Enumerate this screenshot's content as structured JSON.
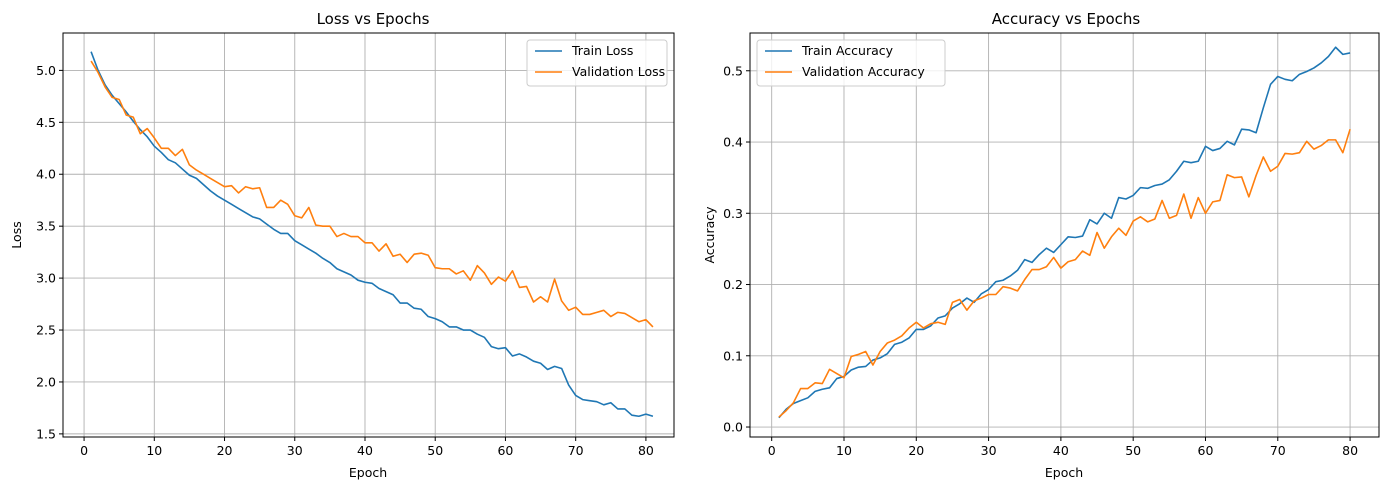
{
  "colors": {
    "train": "#1f77b4",
    "validation": "#ff7f0e"
  },
  "chart_data": [
    {
      "type": "line",
      "title": "Loss vs Epochs",
      "xlabel": "Epoch",
      "ylabel": "Loss",
      "xlim": [
        -3,
        84
      ],
      "ylim": [
        1.47,
        5.36
      ],
      "xticks": [
        0,
        10,
        20,
        30,
        40,
        50,
        60,
        70,
        80
      ],
      "yticks": [
        1.5,
        2.0,
        2.5,
        3.0,
        3.5,
        4.0,
        4.5,
        5.0
      ],
      "ytick_labels": [
        "1.5",
        "2.0",
        "2.5",
        "3.0",
        "3.5",
        "4.0",
        "4.5",
        "5.0"
      ],
      "grid": true,
      "legend": "top-right",
      "x_start": 1,
      "series": [
        {
          "name": "Train Loss",
          "color_key": "train",
          "values": [
            5.18,
            5.0,
            4.86,
            4.76,
            4.68,
            4.6,
            4.51,
            4.43,
            4.36,
            4.27,
            4.21,
            4.14,
            4.11,
            4.05,
            3.99,
            3.96,
            3.9,
            3.84,
            3.79,
            3.75,
            3.71,
            3.67,
            3.63,
            3.59,
            3.57,
            3.52,
            3.47,
            3.43,
            3.43,
            3.36,
            3.32,
            3.28,
            3.24,
            3.19,
            3.15,
            3.09,
            3.06,
            3.03,
            2.98,
            2.96,
            2.95,
            2.9,
            2.87,
            2.84,
            2.76,
            2.76,
            2.71,
            2.7,
            2.63,
            2.61,
            2.58,
            2.53,
            2.53,
            2.5,
            2.5,
            2.46,
            2.43,
            2.34,
            2.32,
            2.33,
            2.25,
            2.27,
            2.24,
            2.2,
            2.18,
            2.12,
            2.15,
            2.13,
            1.97,
            1.87,
            1.83,
            1.82,
            1.81,
            1.78,
            1.8,
            1.74,
            1.74,
            1.68,
            1.67,
            1.69,
            1.67
          ]
        },
        {
          "name": "Validation Loss",
          "color_key": "validation",
          "values": [
            5.09,
            4.98,
            4.84,
            4.74,
            4.72,
            4.57,
            4.55,
            4.39,
            4.44,
            4.35,
            4.25,
            4.25,
            4.18,
            4.24,
            4.09,
            4.04,
            4.0,
            3.96,
            3.92,
            3.88,
            3.89,
            3.82,
            3.88,
            3.86,
            3.87,
            3.68,
            3.68,
            3.75,
            3.71,
            3.6,
            3.58,
            3.68,
            3.51,
            3.5,
            3.5,
            3.4,
            3.43,
            3.4,
            3.4,
            3.34,
            3.34,
            3.26,
            3.33,
            3.21,
            3.23,
            3.15,
            3.23,
            3.24,
            3.22,
            3.1,
            3.09,
            3.09,
            3.04,
            3.07,
            2.98,
            3.12,
            3.05,
            2.94,
            3.01,
            2.97,
            3.07,
            2.91,
            2.92,
            2.77,
            2.82,
            2.77,
            2.99,
            2.78,
            2.69,
            2.72,
            2.65,
            2.65,
            2.67,
            2.69,
            2.63,
            2.67,
            2.66,
            2.62,
            2.58,
            2.6,
            2.53
          ]
        }
      ]
    },
    {
      "type": "line",
      "title": "Accuracy vs Epochs",
      "xlabel": "Epoch",
      "ylabel": "Accuracy",
      "xlim": [
        -3,
        84
      ],
      "ylim": [
        -0.014,
        0.553
      ],
      "xticks": [
        0,
        10,
        20,
        30,
        40,
        50,
        60,
        70,
        80
      ],
      "yticks": [
        0.0,
        0.1,
        0.2,
        0.3,
        0.4,
        0.5
      ],
      "ytick_labels": [
        "0.0",
        "0.1",
        "0.2",
        "0.3",
        "0.4",
        "0.5"
      ],
      "grid": true,
      "legend": "top-left",
      "x_start": 1,
      "series": [
        {
          "name": "Train Accuracy",
          "color_key": "train",
          "values": [
            0.013,
            0.025,
            0.033,
            0.037,
            0.041,
            0.05,
            0.053,
            0.055,
            0.068,
            0.071,
            0.08,
            0.084,
            0.085,
            0.094,
            0.097,
            0.103,
            0.116,
            0.119,
            0.125,
            0.137,
            0.137,
            0.142,
            0.153,
            0.156,
            0.167,
            0.173,
            0.181,
            0.175,
            0.187,
            0.193,
            0.204,
            0.206,
            0.212,
            0.22,
            0.235,
            0.231,
            0.242,
            0.251,
            0.245,
            0.256,
            0.267,
            0.266,
            0.268,
            0.291,
            0.285,
            0.3,
            0.293,
            0.322,
            0.32,
            0.325,
            0.336,
            0.335,
            0.339,
            0.341,
            0.347,
            0.359,
            0.373,
            0.371,
            0.373,
            0.394,
            0.388,
            0.391,
            0.401,
            0.396,
            0.418,
            0.417,
            0.413,
            0.448,
            0.481,
            0.492,
            0.488,
            0.486,
            0.495,
            0.499,
            0.504,
            0.511,
            0.52,
            0.533,
            0.523,
            0.525
          ]
        },
        {
          "name": "Validation Accuracy",
          "color_key": "validation",
          "values": [
            0.014,
            0.023,
            0.034,
            0.054,
            0.054,
            0.062,
            0.061,
            0.081,
            0.075,
            0.069,
            0.099,
            0.102,
            0.106,
            0.087,
            0.106,
            0.118,
            0.122,
            0.128,
            0.139,
            0.147,
            0.139,
            0.145,
            0.147,
            0.144,
            0.175,
            0.179,
            0.164,
            0.177,
            0.181,
            0.186,
            0.186,
            0.197,
            0.195,
            0.191,
            0.207,
            0.221,
            0.221,
            0.225,
            0.238,
            0.223,
            0.232,
            0.235,
            0.247,
            0.241,
            0.273,
            0.251,
            0.267,
            0.279,
            0.269,
            0.289,
            0.295,
            0.288,
            0.292,
            0.318,
            0.293,
            0.297,
            0.327,
            0.293,
            0.322,
            0.3,
            0.316,
            0.318,
            0.354,
            0.35,
            0.351,
            0.323,
            0.353,
            0.379,
            0.359,
            0.366,
            0.384,
            0.383,
            0.385,
            0.401,
            0.39,
            0.395,
            0.403,
            0.403,
            0.385,
            0.418
          ]
        }
      ]
    }
  ]
}
